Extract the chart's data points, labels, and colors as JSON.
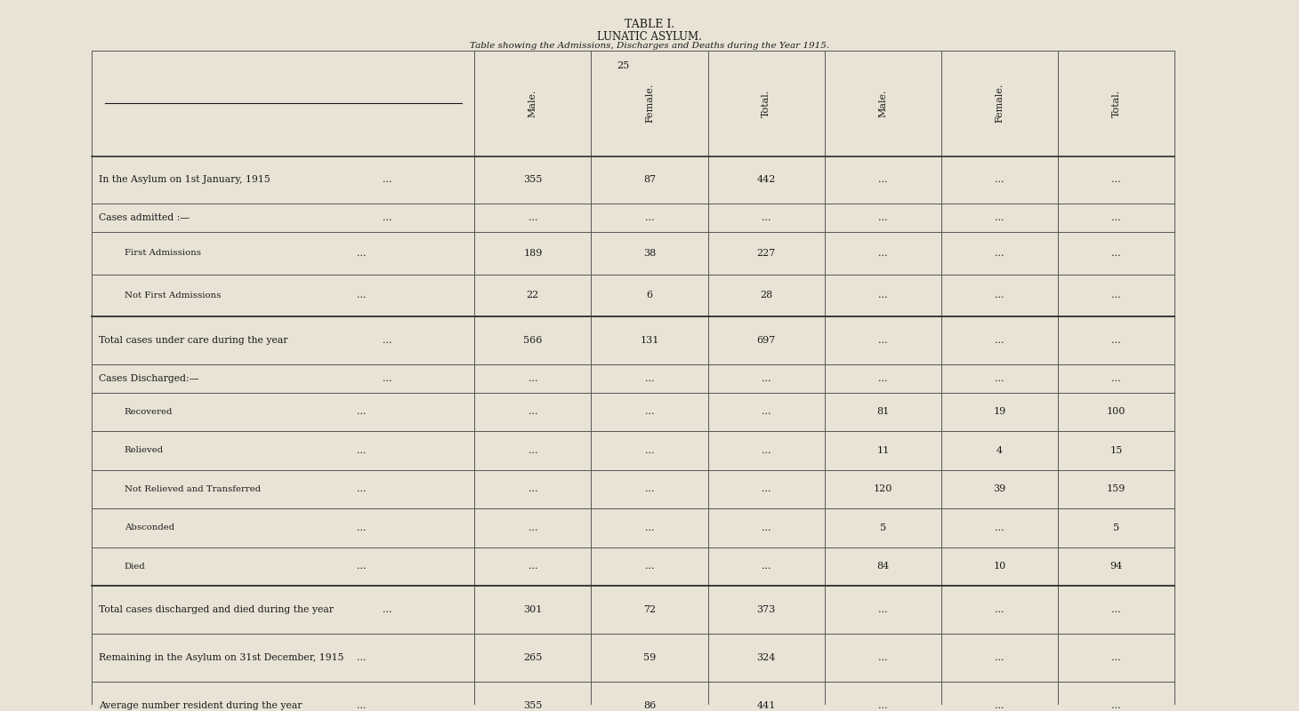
{
  "title1": "TABLE I.",
  "title2": "LUNATIC ASYLUM.",
  "title3": "Table showing the Admissions, Discharges and Deaths during the Year 1915.",
  "page_number": "25",
  "background_color": "#e8e3d5",
  "text_color": "#1a1a1a",
  "col_headers": [
    "Male.",
    "Female.",
    "Total.",
    "Male.",
    "Female.",
    "Total."
  ],
  "row_labels": [
    "In the Asylum on 1st January, 1915",
    "Cases admitted :—",
    "First Admissions",
    "Not First Admissions",
    "Total cases under care during the year",
    "Cases Discharged:—",
    "Recovered",
    "Relieved",
    "Not Relieved and Transferred",
    "Absconded",
    "Died",
    "Total cases discharged and died during the year",
    "Remaining in the Asylum on 31st December, 1915",
    "Average number resident during the year"
  ],
  "data": {
    "male_adm": [
      "355",
      "...",
      "189",
      "22",
      "566",
      "...",
      "...",
      "...",
      "...",
      "...",
      "...",
      "301",
      "265",
      "355"
    ],
    "female_adm": [
      "87",
      "...",
      "38",
      "6",
      "131",
      "...",
      "...",
      "...",
      "...",
      "...",
      "...",
      "72",
      "59",
      "86"
    ],
    "total_adm": [
      "442",
      "...",
      "227",
      "28",
      "697",
      "...",
      "...",
      "...",
      "...",
      "...",
      "...",
      "373",
      "324",
      "441"
    ],
    "male_dis": [
      "...",
      "...",
      "...",
      "...",
      "...",
      "...",
      "81",
      "11",
      "120",
      "5",
      "84",
      "...",
      "...",
      "..."
    ],
    "female_dis": [
      "...",
      "...",
      "...",
      "...",
      "...",
      "...",
      "19",
      "4",
      "39",
      "...",
      "10",
      "...",
      "...",
      "..."
    ],
    "total_dis": [
      "...",
      "...",
      "...",
      "...",
      "...",
      "...",
      "100",
      "15",
      "159",
      "5",
      "94",
      "...",
      "...",
      "..."
    ]
  },
  "dots_col": [
    "...",
    "...",
    "...",
    "...",
    "...",
    "...",
    "...",
    "...",
    "...",
    "...",
    "...",
    "...",
    "...",
    "..."
  ]
}
